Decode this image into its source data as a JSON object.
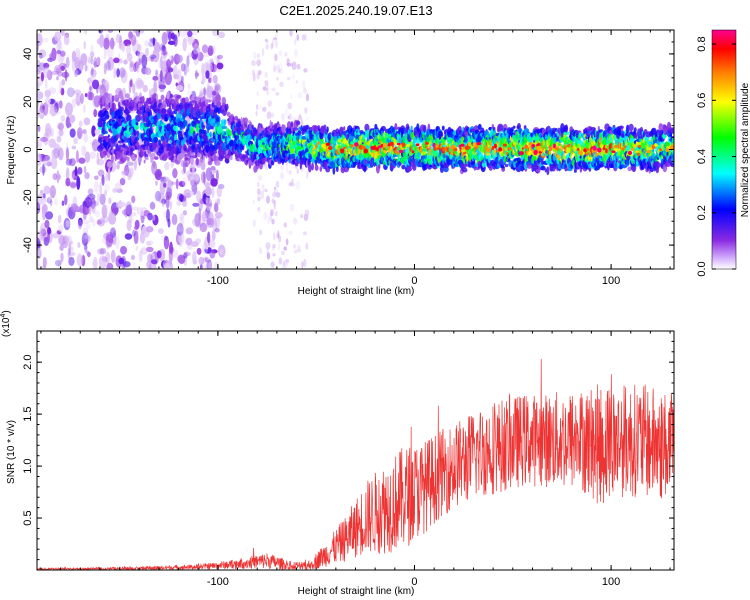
{
  "figure": {
    "title": "C2E1.2025.240.19.07.E13"
  },
  "chart_data": [
    {
      "type": "heatmap",
      "title": "C2E1.2025.240.19.07.E13",
      "xlabel": "Height of straight line (km)",
      "ylabel": "Frequency (Hz)",
      "xlim": [
        -192,
        132
      ],
      "ylim": [
        -50,
        50
      ],
      "x_ticks": [
        -100,
        0,
        100
      ],
      "x_tick_labels": [
        "-100",
        "0",
        "100"
      ],
      "y_ticks": [
        -40,
        -20,
        0,
        20,
        40
      ],
      "y_tick_labels": [
        "-40",
        "-20",
        "0",
        "20",
        "40"
      ],
      "colorbar": {
        "label": "Normalized spectral amplitude",
        "range": [
          0,
          0.85
        ],
        "ticks": [
          0.0,
          0.2,
          0.4,
          0.6,
          0.8
        ],
        "tick_labels": [
          "0.0",
          "0.2",
          "0.4",
          "0.6",
          "0.8"
        ],
        "colors": [
          "#ffffff",
          "#8a2be2",
          "#0000ff",
          "#00ffff",
          "#00ff00",
          "#ffff00",
          "#ff8000",
          "#ff0000",
          "#ff00aa"
        ]
      },
      "ridge": {
        "x": [
          -160,
          -130,
          -100,
          -80,
          -60,
          -40,
          -20,
          0,
          20,
          40,
          60,
          80,
          100,
          120,
          132
        ],
        "center_hz": [
          9,
          9,
          8,
          1,
          2,
          0,
          1,
          1,
          0,
          1,
          0,
          0,
          1,
          0,
          1
        ],
        "peak_amplitude": [
          0.35,
          0.4,
          0.45,
          0.5,
          0.6,
          0.75,
          0.8,
          0.8,
          0.8,
          0.75,
          0.8,
          0.8,
          0.8,
          0.7,
          0.6
        ]
      }
    },
    {
      "type": "line",
      "xlabel": "Height of straight line (km)",
      "ylabel": "SNR (10 * v/v)",
      "y_scale_label": "(x10",
      "y_scale_exponent": "4",
      "xlim": [
        -192,
        132
      ],
      "ylim": [
        0,
        2.3
      ],
      "x_ticks": [
        -100,
        0,
        100
      ],
      "x_tick_labels": [
        "-100",
        "0",
        "100"
      ],
      "y_ticks": [
        0.5,
        1.0,
        1.5,
        2.0
      ],
      "y_tick_labels": [
        "0.5",
        "1.0",
        "1.5",
        "2.0"
      ],
      "series": [
        {
          "name": "SNR",
          "color": "#ee3333",
          "x": [
            -192,
            -170,
            -150,
            -130,
            -110,
            -95,
            -85,
            -75,
            -65,
            -55,
            -45,
            -35,
            -25,
            -15,
            -5,
            5,
            15,
            25,
            35,
            45,
            55,
            65,
            75,
            85,
            95,
            105,
            115,
            125,
            132
          ],
          "mean": [
            0.01,
            0.01,
            0.015,
            0.02,
            0.03,
            0.05,
            0.07,
            0.09,
            0.05,
            0.03,
            0.15,
            0.3,
            0.5,
            0.6,
            0.7,
            0.8,
            0.95,
            1.05,
            1.15,
            1.2,
            1.25,
            1.25,
            1.25,
            1.25,
            1.2,
            1.25,
            1.25,
            1.2,
            1.2
          ],
          "amplitude": [
            0.01,
            0.01,
            0.015,
            0.02,
            0.025,
            0.04,
            0.06,
            0.08,
            0.05,
            0.04,
            0.12,
            0.22,
            0.35,
            0.45,
            0.5,
            0.45,
            0.42,
            0.42,
            0.45,
            0.45,
            0.45,
            0.45,
            0.48,
            0.5,
            0.6,
            0.55,
            0.55,
            0.55,
            0.5
          ]
        }
      ]
    }
  ]
}
